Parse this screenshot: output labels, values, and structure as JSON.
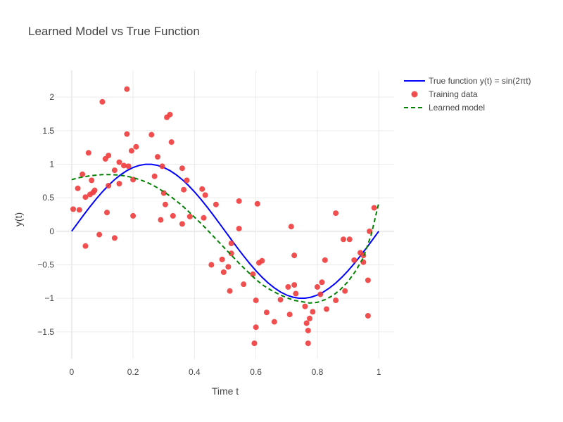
{
  "chart_data": {
    "type": "scatter",
    "title": "Learned Model vs True Function",
    "xlabel": "Time t",
    "ylabel": "y(t)",
    "xlim": [
      -0.05,
      1.05
    ],
    "ylim": [
      -1.9,
      2.4
    ],
    "xticks": [
      0,
      0.2,
      0.4,
      0.6,
      0.8,
      1
    ],
    "xtick_labels": [
      "0",
      "0.2",
      "0.4",
      "0.6",
      "0.8",
      "1"
    ],
    "yticks": [
      -1.5,
      -1,
      -0.5,
      0,
      0.5,
      1,
      1.5,
      2
    ],
    "ytick_labels": [
      "−1.5",
      "−1",
      "−0.5",
      "0",
      "0.5",
      "1",
      "1.5",
      "2"
    ],
    "grid": true,
    "legend_position": "top-right",
    "series": [
      {
        "name": "True function y(t) = sin(2πt)",
        "kind": "line",
        "color": "#0000ff",
        "dash": "solid",
        "x": [
          0,
          0.02,
          0.04,
          0.06,
          0.08,
          0.1,
          0.12,
          0.14,
          0.16,
          0.18,
          0.2,
          0.22,
          0.24,
          0.26,
          0.28,
          0.3,
          0.32,
          0.34,
          0.36,
          0.38,
          0.4,
          0.42,
          0.44,
          0.46,
          0.48,
          0.5,
          0.52,
          0.54,
          0.56,
          0.58,
          0.6,
          0.62,
          0.64,
          0.66,
          0.68,
          0.7,
          0.72,
          0.74,
          0.76,
          0.78,
          0.8,
          0.82,
          0.84,
          0.86,
          0.88,
          0.9,
          0.92,
          0.94,
          0.96,
          0.98,
          1
        ],
        "y": [
          0,
          0.125,
          0.249,
          0.368,
          0.482,
          0.588,
          0.685,
          0.771,
          0.844,
          0.905,
          0.951,
          0.982,
          0.998,
          0.998,
          0.982,
          0.951,
          0.905,
          0.844,
          0.771,
          0.685,
          0.588,
          0.482,
          0.368,
          0.249,
          0.125,
          0,
          -0.125,
          -0.249,
          -0.368,
          -0.482,
          -0.588,
          -0.685,
          -0.771,
          -0.844,
          -0.905,
          -0.951,
          -0.982,
          -0.998,
          -0.998,
          -0.982,
          -0.951,
          -0.905,
          -0.844,
          -0.771,
          -0.685,
          -0.588,
          -0.482,
          -0.368,
          -0.249,
          -0.125,
          0
        ]
      },
      {
        "name": "Training data",
        "kind": "markers",
        "color": "#f03c3c",
        "x": [
          0.005,
          0.02,
          0.025,
          0.035,
          0.045,
          0.045,
          0.055,
          0.06,
          0.065,
          0.07,
          0.075,
          0.09,
          0.1,
          0.11,
          0.115,
          0.12,
          0.12,
          0.14,
          0.14,
          0.155,
          0.155,
          0.17,
          0.18,
          0.18,
          0.185,
          0.195,
          0.2,
          0.2,
          0.21,
          0.26,
          0.27,
          0.28,
          0.29,
          0.295,
          0.3,
          0.305,
          0.31,
          0.32,
          0.325,
          0.33,
          0.36,
          0.36,
          0.365,
          0.375,
          0.385,
          0.425,
          0.43,
          0.435,
          0.455,
          0.47,
          0.49,
          0.495,
          0.51,
          0.515,
          0.52,
          0.52,
          0.545,
          0.545,
          0.56,
          0.59,
          0.595,
          0.6,
          0.6,
          0.605,
          0.61,
          0.62,
          0.635,
          0.66,
          0.68,
          0.705,
          0.71,
          0.715,
          0.725,
          0.725,
          0.73,
          0.76,
          0.765,
          0.77,
          0.77,
          0.775,
          0.785,
          0.8,
          0.81,
          0.815,
          0.825,
          0.83,
          0.86,
          0.86,
          0.885,
          0.89,
          0.905,
          0.92,
          0.94,
          0.95,
          0.95,
          0.965,
          0.965,
          0.97,
          0.985
        ],
        "y": [
          0.33,
          0.64,
          0.32,
          0.85,
          0.51,
          -0.22,
          1.17,
          0.55,
          0.76,
          0.58,
          0.61,
          -0.05,
          1.93,
          1.08,
          0.28,
          1.13,
          0.68,
          0.91,
          -0.1,
          0.71,
          1.03,
          0.98,
          2.12,
          1.45,
          0.97,
          1.2,
          0.77,
          0.23,
          1.26,
          1.44,
          0.82,
          1.11,
          0.17,
          0.97,
          0.57,
          0.4,
          1.7,
          1.74,
          1.33,
          0.23,
          0.94,
          0.11,
          0.62,
          0.76,
          0.22,
          0.63,
          0.2,
          0.54,
          -0.5,
          0.4,
          -0.42,
          -0.61,
          -0.53,
          -0.89,
          -0.33,
          -0.18,
          0.45,
          0.04,
          -0.79,
          -0.64,
          -1.67,
          -1.43,
          -1.03,
          0.41,
          -0.47,
          -0.44,
          -1.21,
          -1.35,
          -1.02,
          -0.83,
          -1.24,
          0.07,
          -0.36,
          -0.8,
          -0.93,
          -1.12,
          -1.37,
          -1.67,
          -1.48,
          -1.3,
          -1.2,
          -0.83,
          -0.94,
          -0.76,
          -0.43,
          -1.16,
          0.27,
          -1.03,
          -0.12,
          -0.89,
          -0.12,
          -0.43,
          -0.32,
          -0.46,
          -0.36,
          -1.26,
          -0.73,
          0.0,
          0.35
        ]
      },
      {
        "name": "Learned model",
        "kind": "line",
        "color": "#008000",
        "dash": "dashed",
        "x": [
          0,
          0.025,
          0.05,
          0.075,
          0.1,
          0.125,
          0.15,
          0.175,
          0.2,
          0.225,
          0.25,
          0.275,
          0.3,
          0.325,
          0.35,
          0.375,
          0.4,
          0.425,
          0.45,
          0.475,
          0.5,
          0.525,
          0.55,
          0.575,
          0.6,
          0.625,
          0.65,
          0.675,
          0.7,
          0.725,
          0.75,
          0.775,
          0.8,
          0.825,
          0.85,
          0.875,
          0.9,
          0.925,
          0.95,
          0.975,
          1
        ],
        "y": [
          0.77,
          0.8,
          0.82,
          0.835,
          0.845,
          0.845,
          0.84,
          0.825,
          0.8,
          0.765,
          0.72,
          0.66,
          0.59,
          0.51,
          0.42,
          0.32,
          0.21,
          0.1,
          -0.02,
          -0.14,
          -0.26,
          -0.38,
          -0.5,
          -0.61,
          -0.72,
          -0.81,
          -0.88,
          -0.94,
          -0.99,
          -1.03,
          -1.05,
          -1.07,
          -1.06,
          -1.02,
          -0.96,
          -0.87,
          -0.75,
          -0.59,
          -0.39,
          -0.06,
          0.42
        ]
      }
    ]
  }
}
